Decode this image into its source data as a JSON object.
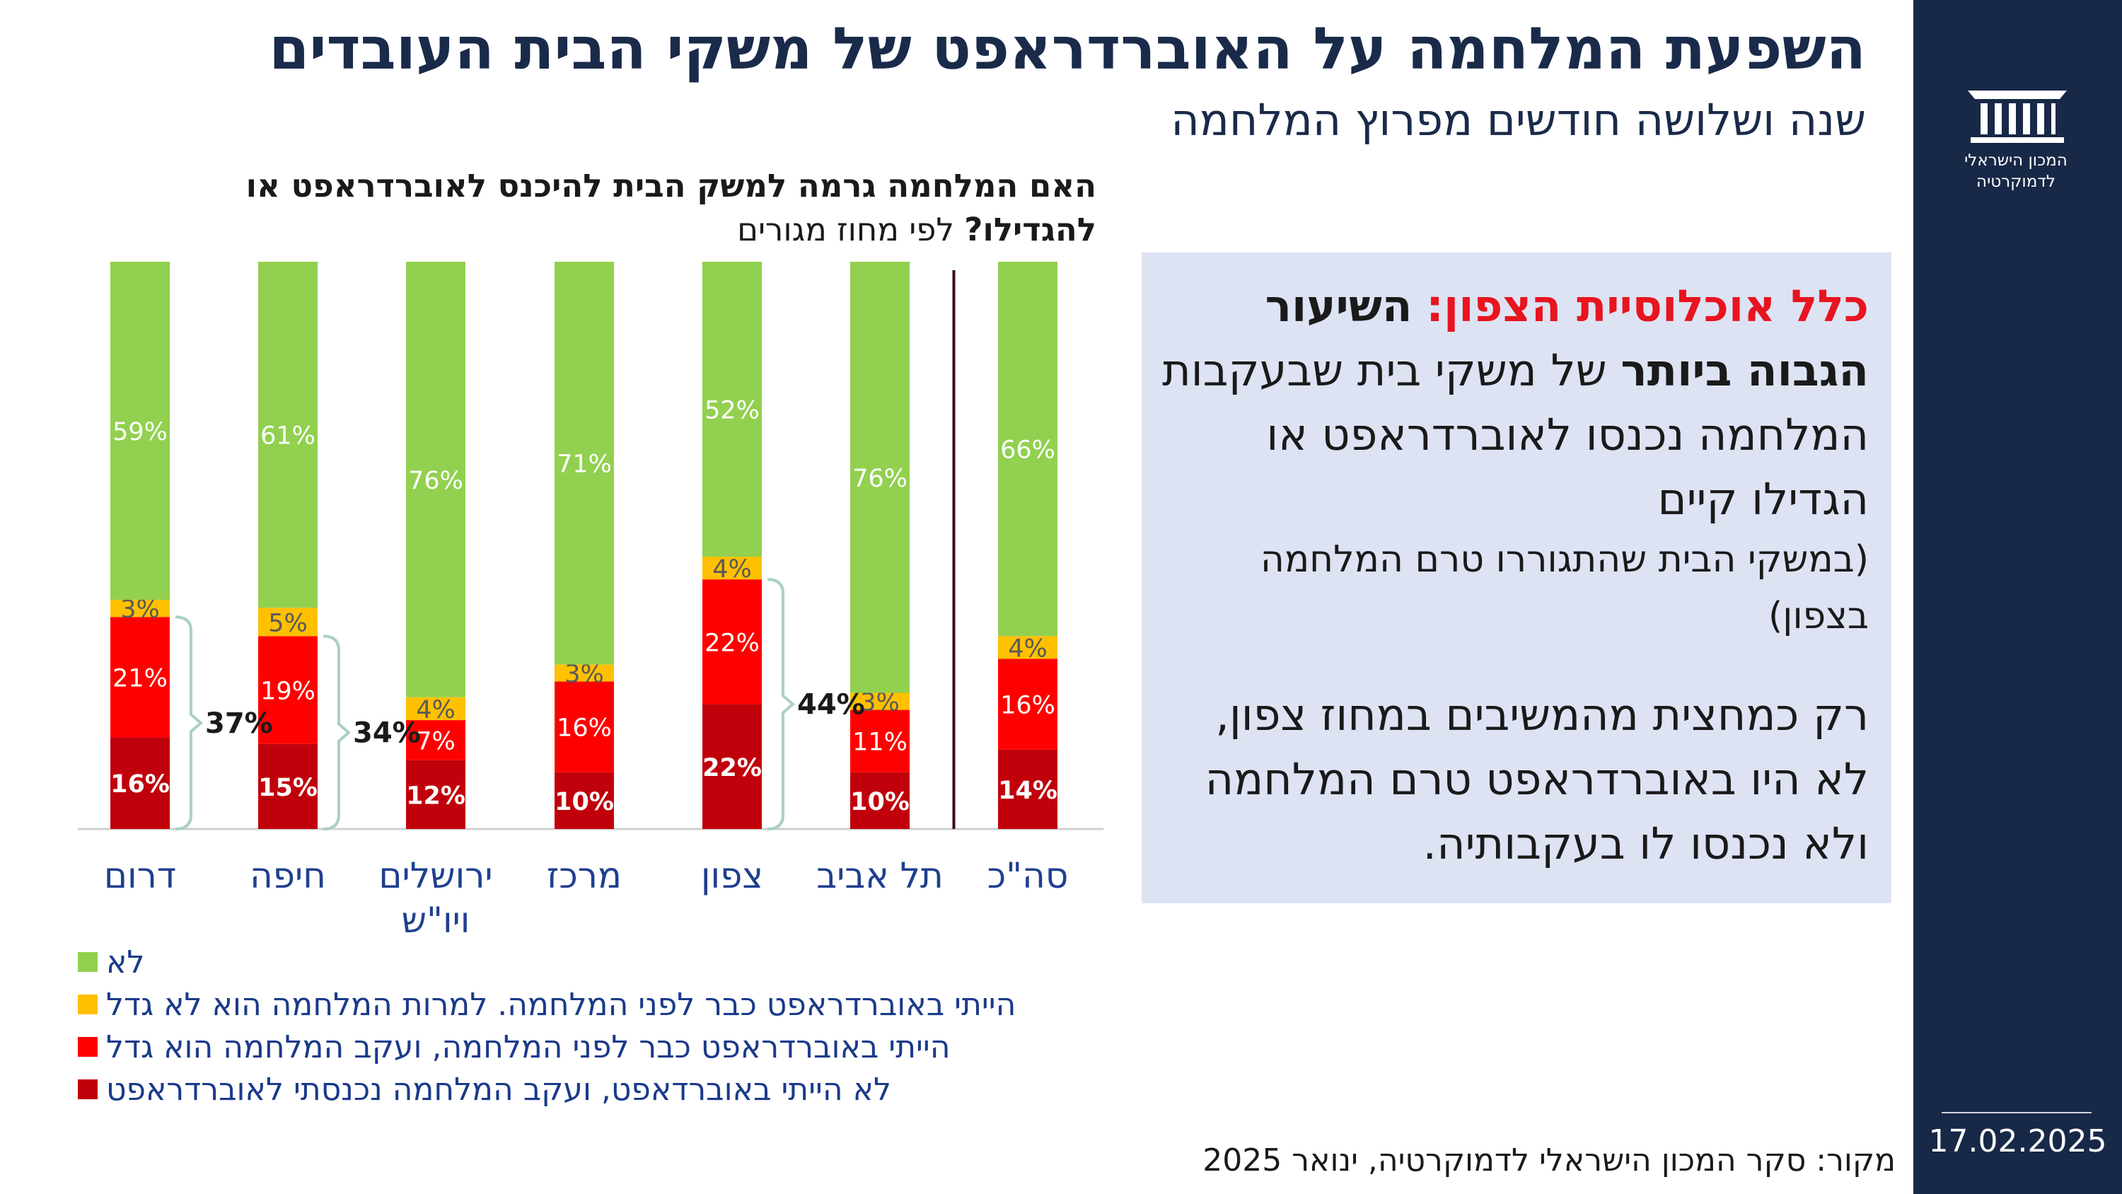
{
  "title": "השפעת המלחמה על האוברדראפט של משקי הבית העובדים",
  "subtitle": "שנה ושלושה חודשים מפרוץ המלחמה",
  "question": {
    "bold": "האם המלחמה גרמה למשק הבית להיכנס לאוברדראפט או להגדילו?",
    "normal": "לפי מחוז מגורים"
  },
  "sidebar": {
    "org_name_line1": "המכון הישראלי",
    "org_name_line2": "לדמוקרטיה",
    "logo_icon": "building-columns-icon",
    "date": "17.02.2025",
    "color": "#182847"
  },
  "callout": {
    "part1_red": "כלל אוכלוסיית הצפון:",
    "part2_bold": "השיעור הגבוה ביותר",
    "part3": "של משקי בית שבעקבות המלחמה נכנסו לאוברדראפט או הגדילו קיים",
    "part4_small": "(במשקי הבית שהתגוררו טרם המלחמה בצפון)",
    "part5": "רק כמחצית מהמשיבים במחוז צפון, לא היו באוברדראפט טרם המלחמה ולא נכנסו לו בעקבותיה."
  },
  "source": "מקור: סקר המכון הישראלי לדמוקרטיה, ינואר 2025",
  "chart_data": {
    "type": "bar",
    "stacked": true,
    "percent_scale": true,
    "categories": [
      "דרום",
      "חיפה",
      "ירושלים ויו\"ש",
      "מרכז",
      "צפון",
      "תל אביב",
      "סה\"כ"
    ],
    "series": [
      {
        "name": "לא הייתי באוברדאפט, ועקב המלחמה נכנסתי לאוברדראפט",
        "color": "#c0000a",
        "values": [
          16,
          15,
          12,
          10,
          22,
          10,
          14
        ],
        "label_bold": true
      },
      {
        "name": "הייתי באוברדראפט כבר לפני המלחמה, ועקב המלחמה הוא גדל",
        "color": "#ff0000",
        "values": [
          21,
          19,
          7,
          16,
          22,
          11,
          16
        ]
      },
      {
        "name": "הייתי באוברדראפט כבר לפני המלחמה. למרות המלחמה הוא לא גדל",
        "color": "#ffc000",
        "values": [
          3,
          5,
          4,
          3,
          4,
          3,
          4
        ]
      },
      {
        "name": "לא",
        "color": "#92d050",
        "values": [
          59,
          61,
          76,
          71,
          52,
          76,
          66
        ]
      }
    ],
    "legend_order": [
      3,
      2,
      1,
      0
    ],
    "brackets": [
      {
        "category_index": 0,
        "label": "37%"
      },
      {
        "category_index": 1,
        "label": "34%"
      },
      {
        "category_index": 4,
        "label": "44%"
      }
    ],
    "divider_before_category": 6,
    "value_suffix": "%",
    "ylim": [
      0,
      100
    ],
    "grid": false
  }
}
